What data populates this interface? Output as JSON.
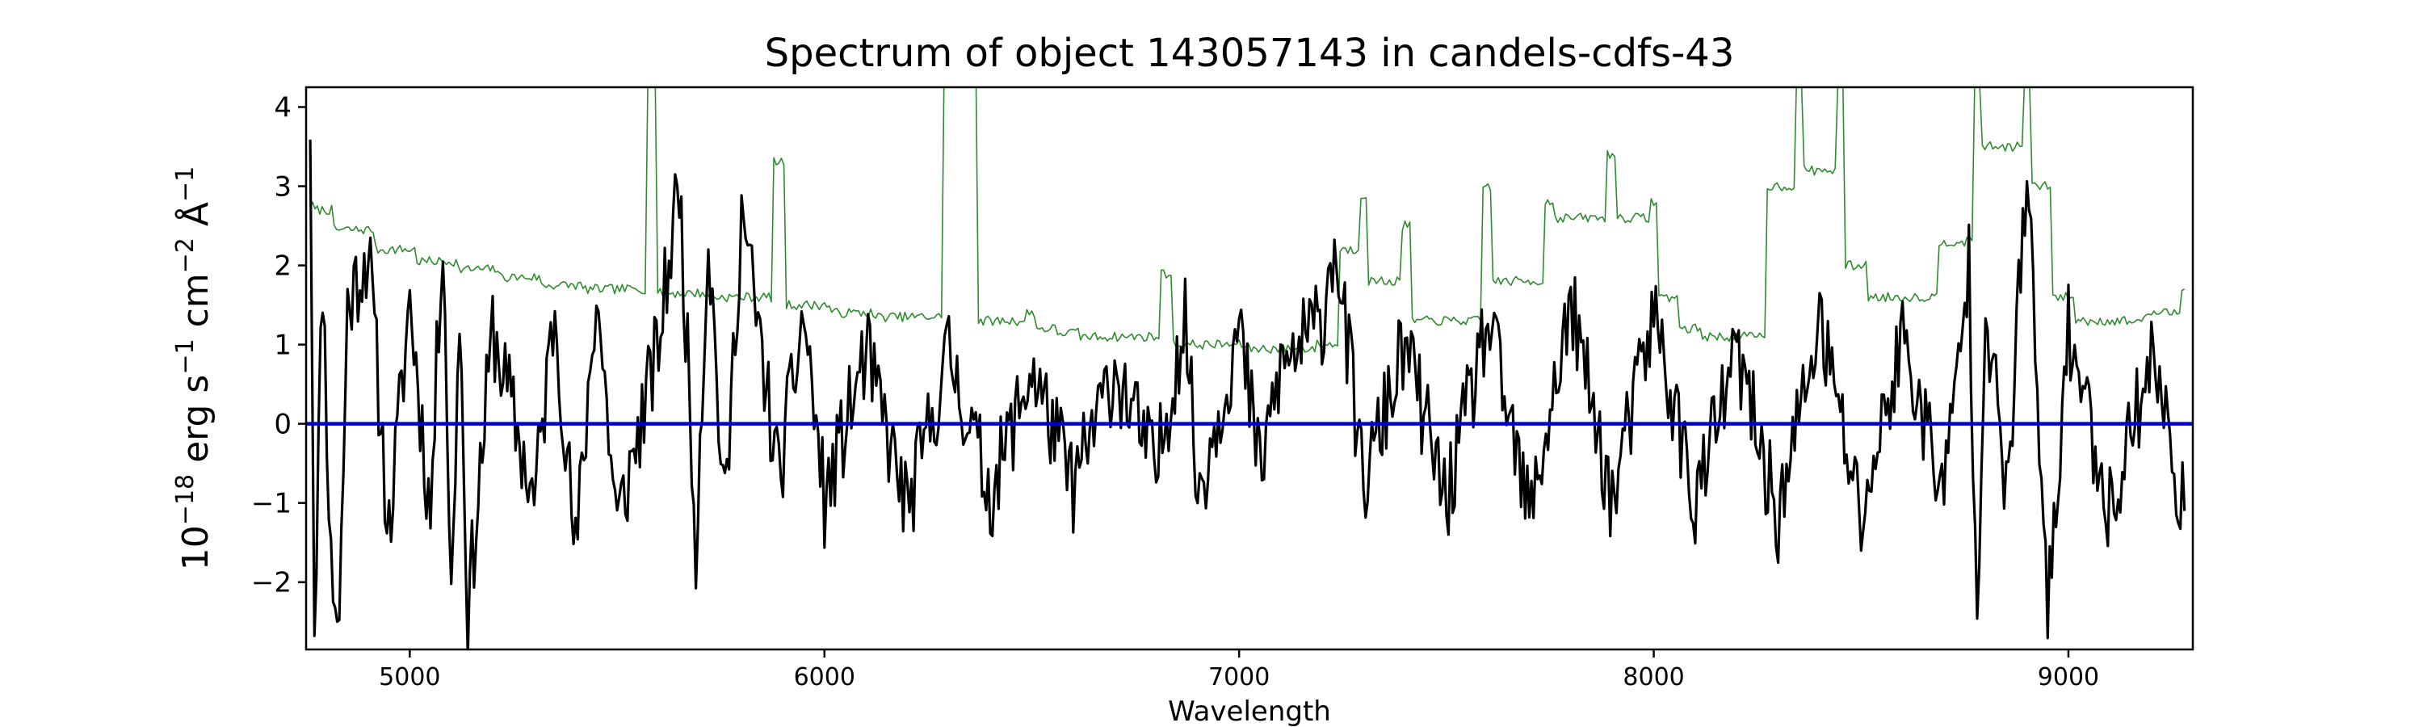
{
  "chart_data": {
    "type": "line",
    "title": "Spectrum of object 143057143 in candels-cdfs-43",
    "xlabel": "Wavelength",
    "ylabel": {
      "base": "10",
      "exp": "−18",
      "unit1": " erg s",
      "exp1": "−1",
      "unit2": " cm",
      "exp2": "−2",
      "unit3": " Å",
      "exp3": "−1"
    },
    "xlim": [
      4750,
      9300
    ],
    "ylim": [
      -2.85,
      4.25
    ],
    "x_ticks": [
      5000,
      6000,
      7000,
      8000,
      9000
    ],
    "x_tick_labels": [
      "5000",
      "6000",
      "7000",
      "8000",
      "9000"
    ],
    "y_ticks": [
      -2,
      -1,
      0,
      1,
      2,
      3,
      4
    ],
    "y_tick_labels": [
      "−2",
      "−1",
      "0",
      "1",
      "2",
      "3",
      "4"
    ],
    "grid": false,
    "series": [
      {
        "color": "#2e8b2e",
        "style": "thin noisy line, sky/error spectrum",
        "x": [
          4760,
          4800,
          4900,
          5000,
          5100,
          5200,
          5300,
          5400,
          5500,
          5580,
          5700,
          5800,
          5890,
          6000,
          6100,
          6200,
          6300,
          6360,
          6400,
          6500,
          6550,
          6600,
          6700,
          6830,
          6900,
          7000,
          7100,
          7200,
          7250,
          7300,
          7350,
          7400,
          7500,
          7600,
          7650,
          7750,
          7800,
          7900,
          7950,
          8000,
          8050,
          8100,
          8200,
          8280,
          8350,
          8400,
          8450,
          8500,
          8600,
          8700,
          8780,
          8830,
          8900,
          8950,
          9000,
          9100,
          9200,
          9280
        ],
        "values": [
          2.75,
          2.7,
          2.45,
          2.2,
          2.05,
          1.95,
          1.85,
          1.75,
          1.7,
          4.3,
          1.65,
          1.6,
          3.3,
          1.5,
          1.4,
          1.35,
          4.3,
          4.3,
          1.3,
          1.4,
          1.2,
          1.15,
          1.1,
          1.9,
          1.0,
          1.0,
          0.95,
          1.0,
          2.2,
          2.9,
          1.8,
          2.5,
          1.3,
          3.0,
          1.8,
          2.8,
          2.6,
          3.4,
          2.6,
          2.8,
          1.6,
          1.2,
          1.1,
          3.0,
          4.3,
          3.2,
          4.3,
          2.0,
          1.6,
          2.3,
          4.3,
          3.5,
          4.3,
          3.0,
          1.6,
          1.3,
          1.4,
          1.7
        ]
      },
      {
        "color": "#000000",
        "style": "noisy object spectrum, fluctuating around zero",
        "x": [
          4760,
          4770,
          4790,
          4810,
          4830,
          4850,
          4900,
          4950,
          5000,
          5050,
          5080,
          5100,
          5120,
          5140,
          5200,
          5300,
          5350,
          5400,
          5450,
          5500,
          5600,
          5650,
          5690,
          5720,
          5760,
          5800,
          5890,
          5950,
          6000,
          6100,
          6200,
          6300,
          6400,
          6500,
          6600,
          6700,
          6800,
          6870,
          6900,
          7000,
          7050,
          7100,
          7200,
          7230,
          7300,
          7400,
          7500,
          7600,
          7700,
          7800,
          7900,
          8000,
          8100,
          8200,
          8300,
          8400,
          8500,
          8600,
          8700,
          8760,
          8780,
          8800,
          8850,
          8900,
          8950,
          9000,
          9100,
          9200,
          9280
        ],
        "values": [
          3.9,
          -2.5,
          1.9,
          -1.8,
          -2.5,
          1.5,
          2.2,
          -1.4,
          1.6,
          -1.2,
          2.6,
          -2.3,
          1.5,
          -2.4,
          1.2,
          -1.0,
          1.5,
          -1.7,
          1.7,
          -1.3,
          1.0,
          3.1,
          -1.5,
          2.4,
          -1.2,
          2.7,
          -0.7,
          1.4,
          -1.0,
          0.9,
          -1.1,
          0.9,
          -0.9,
          0.7,
          -0.8,
          0.7,
          -0.6,
          1.4,
          -0.9,
          1.2,
          -0.6,
          0.7,
          1.3,
          2.4,
          -0.8,
          1.0,
          -1.0,
          1.3,
          -1.2,
          1.5,
          -1.0,
          1.4,
          -1.0,
          0.9,
          -1.2,
          1.3,
          -1.2,
          1.1,
          -0.9,
          2.0,
          -2.2,
          1.6,
          -1.0,
          3.2,
          -2.5,
          1.2,
          -1.1,
          0.9,
          -1.1
        ]
      },
      {
        "color": "#0000cc",
        "style": "thick flat line at zero",
        "x": [
          4750,
          9300
        ],
        "values": [
          0,
          0
        ]
      }
    ]
  }
}
